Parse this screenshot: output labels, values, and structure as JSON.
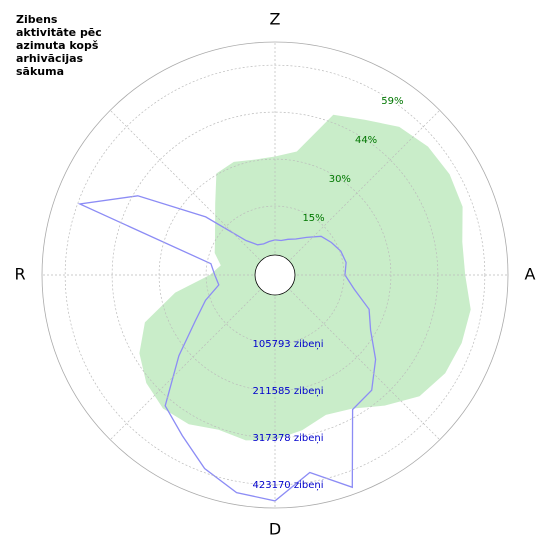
{
  "chart_data": {
    "type": "polar",
    "title": "Zibens aktivitāte pēc azimuta kopš arhivācijas sākuma",
    "theta": [
      0,
      10,
      20,
      30,
      40,
      50,
      60,
      70,
      80,
      90,
      100,
      110,
      120,
      130,
      140,
      150,
      160,
      170,
      180,
      190,
      200,
      210,
      220,
      230,
      240,
      250,
      260,
      270,
      280,
      290,
      300,
      310,
      320,
      330,
      340,
      350
    ],
    "thetaticks": [
      {
        "value": 0,
        "label": "Z"
      },
      {
        "value": 90,
        "label": "A"
      },
      {
        "value": 180,
        "label": "D"
      },
      {
        "value": 270,
        "label": "R"
      }
    ],
    "rlim": [
      0,
      66.5
    ],
    "rticks": [
      {
        "value": 14.8,
        "label": "15%"
      },
      {
        "value": 29.6,
        "label": "30%"
      },
      {
        "value": 44.4,
        "label": "44%"
      },
      {
        "value": 59.2,
        "label": "59%"
      }
    ],
    "r2lim": [
      0,
      475000
    ],
    "r2ticks": [
      {
        "value": 105793,
        "label": "105793 zibeņi"
      },
      {
        "value": 211585,
        "label": "211585 zibeņi"
      },
      {
        "value": 317378,
        "label": "317378 zibeņi"
      },
      {
        "value": 423170,
        "label": "423170 zibeņi"
      }
    ],
    "series": [
      {
        "kind": "area",
        "color": "#c9edc9",
        "label_color": "#007700",
        "values": [
          30.4,
          32.6,
          46.8,
          49.6,
          54,
          56,
          56.6,
          56,
          53,
          53,
          55.7,
          55.7,
          55,
          52.5,
          46.8,
          41.7,
          40,
          42.7,
          45,
          46,
          45,
          47.4,
          48,
          46,
          42.4,
          36.7,
          25,
          13.6,
          10.4,
          13.3,
          14.9,
          17.7,
          22.4,
          30,
          31,
          30
        ]
      },
      {
        "kind": "line",
        "axis": "r2",
        "color": "#8c8cf5",
        "label_color": "#0000cc",
        "values": [
          29400,
          29400,
          36000,
          44000,
          61000,
          86000,
          97000,
          108000,
          113000,
          108000,
          131000,
          176000,
          199000,
          246000,
          289000,
          300000,
          459000,
          402000,
          459000,
          448000,
          414000,
          368000,
          335000,
          233000,
          158000,
          117000,
          79000,
          86000,
          97000,
          418000,
          307000,
          154000,
          52000,
          29000,
          25000,
          27000
        ]
      }
    ]
  }
}
